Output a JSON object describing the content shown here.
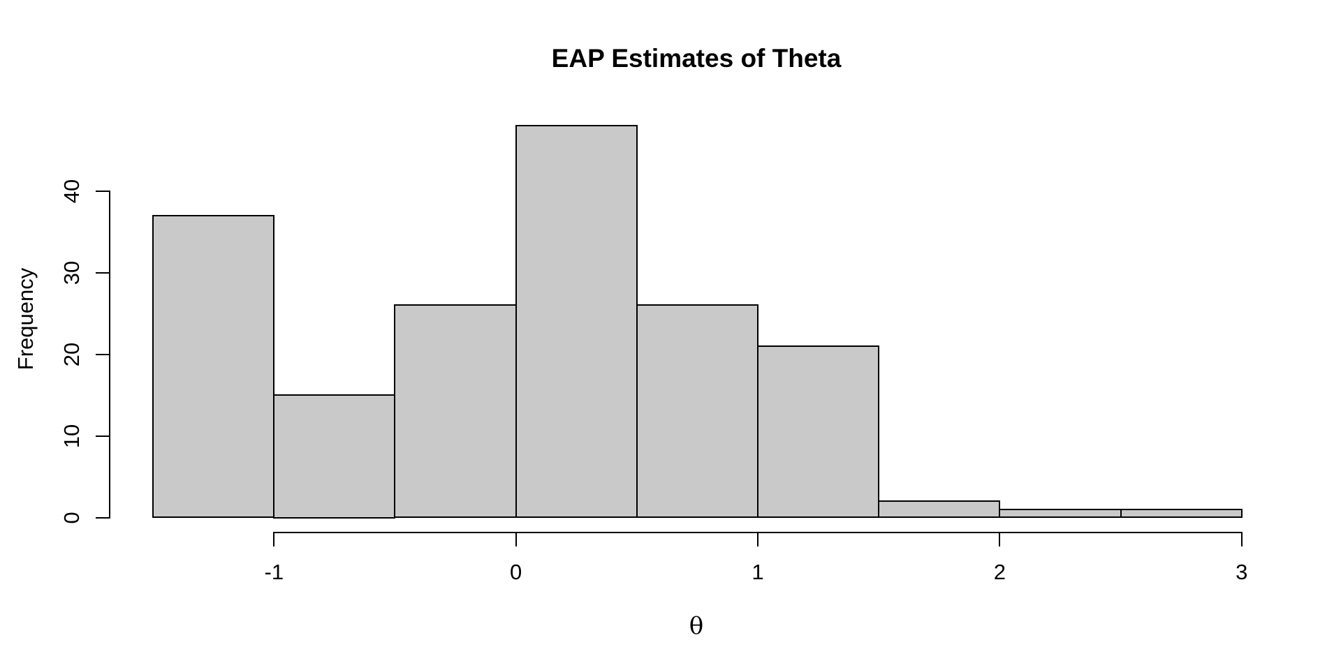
{
  "chart_data": {
    "type": "bar",
    "subtype": "histogram",
    "title": "EAP Estimates of Theta",
    "xlabel": "θ",
    "ylabel": "Frequency",
    "bin_edges": [
      -1.5,
      -1.0,
      -0.5,
      0.0,
      0.5,
      1.0,
      1.5,
      2.0,
      2.5,
      3.0
    ],
    "counts": [
      37,
      15,
      26,
      48,
      26,
      21,
      2,
      1,
      1
    ],
    "x_ticks": [
      -1,
      0,
      1,
      2,
      3
    ],
    "x_tick_labels": [
      "-1",
      "0",
      "1",
      "2",
      "3"
    ],
    "y_ticks": [
      0,
      10,
      20,
      30,
      40
    ],
    "y_tick_labels": [
      "0",
      "10",
      "20",
      "30",
      "40"
    ],
    "xlim": [
      -1.5,
      3.0
    ],
    "ylim": [
      0,
      48
    ],
    "grid": false,
    "legend_position": "none",
    "colors": {
      "bar_fill": "#C9C9C9",
      "bar_border": "#000000",
      "axis": "#000000",
      "background": "#FFFFFF"
    }
  }
}
